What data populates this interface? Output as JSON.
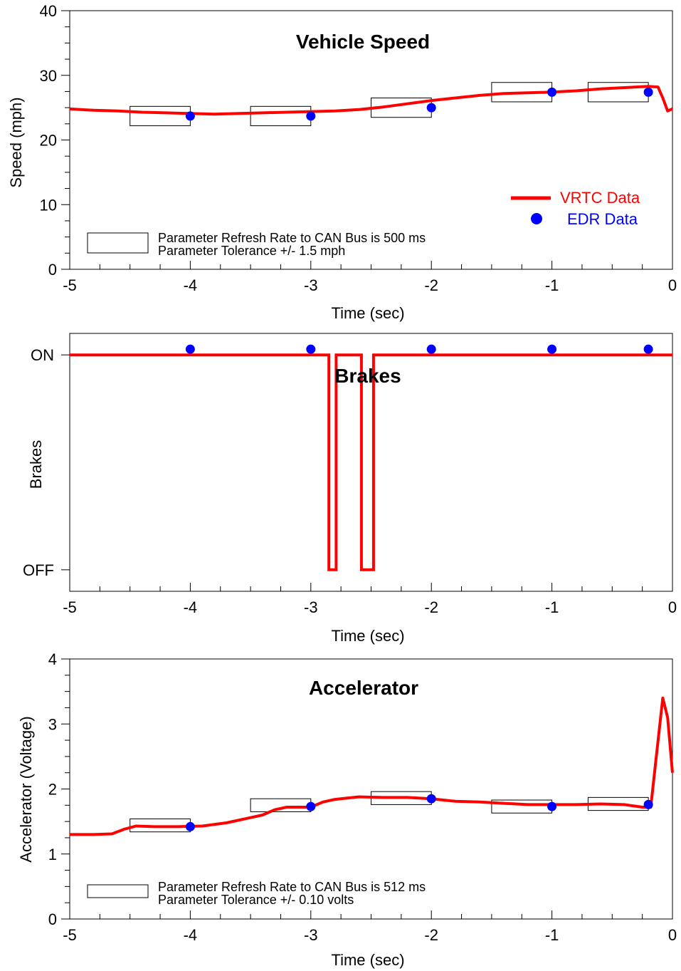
{
  "colors": {
    "vrtc": "#ff0000",
    "edr": "#0000ff",
    "axis": "#000000"
  },
  "chart_data": [
    {
      "type": "line",
      "title": "Vehicle Speed",
      "xlabel": "Time (sec)",
      "ylabel": "Speed (mph)",
      "xlim": [
        -5,
        0
      ],
      "ylim": [
        0,
        40
      ],
      "xticks": [
        "-5",
        "-4",
        "-3",
        "-2",
        "-1",
        "0"
      ],
      "yticks": [
        "0",
        "10",
        "20",
        "30",
        "40"
      ],
      "legend": {
        "placement": "bottom-right",
        "entries": [
          "VRTC Data",
          "EDR Data"
        ]
      },
      "notes": [
        "Parameter Refresh Rate to CAN Bus is 500 ms",
        "Parameter Tolerance +/- 1.5 mph"
      ],
      "series": [
        {
          "name": "VRTC Data",
          "x": [
            -5,
            -4.8,
            -4.6,
            -4.4,
            -4.2,
            -4.0,
            -3.8,
            -3.6,
            -3.4,
            -3.2,
            -3.0,
            -2.8,
            -2.6,
            -2.4,
            -2.2,
            -2.0,
            -1.8,
            -1.6,
            -1.4,
            -1.2,
            -1.0,
            -0.8,
            -0.6,
            -0.4,
            -0.2,
            -0.12,
            -0.08,
            -0.04,
            0
          ],
          "y": [
            24.8,
            24.6,
            24.5,
            24.3,
            24.2,
            24.1,
            24.0,
            24.1,
            24.2,
            24.3,
            24.4,
            24.5,
            24.7,
            25.1,
            25.6,
            26.1,
            26.5,
            26.9,
            27.2,
            27.3,
            27.4,
            27.6,
            27.9,
            28.1,
            28.3,
            28.2,
            26.5,
            24.5,
            24.8
          ]
        },
        {
          "name": "EDR Data",
          "x": [
            -4,
            -3,
            -2,
            -1,
            -0.2
          ],
          "y": [
            23.7,
            23.7,
            25.0,
            27.4,
            27.4
          ]
        }
      ],
      "tolerance_boxes": [
        {
          "x": [
            -4.5,
            -4.0
          ],
          "y": [
            22.2,
            25.2
          ]
        },
        {
          "x": [
            -3.5,
            -3.0
          ],
          "y": [
            22.2,
            25.2
          ]
        },
        {
          "x": [
            -2.5,
            -2.0
          ],
          "y": [
            23.5,
            26.5
          ]
        },
        {
          "x": [
            -1.5,
            -1.0
          ],
          "y": [
            25.9,
            28.9
          ]
        },
        {
          "x": [
            -0.7,
            -0.2
          ],
          "y": [
            25.9,
            28.9
          ]
        }
      ]
    },
    {
      "type": "line",
      "title": "Brakes",
      "xlabel": "Time (sec)",
      "ylabel": "Brakes",
      "xlim": [
        -5,
        0
      ],
      "ylim": [
        -0.1,
        1.1
      ],
      "xticks": [
        "-5",
        "-4",
        "-3",
        "-2",
        "-1",
        "0"
      ],
      "ycategories": [
        "OFF",
        "ON"
      ],
      "series": [
        {
          "name": "VRTC Data",
          "x": [
            -5,
            -2.85,
            -2.85,
            -2.79,
            -2.79,
            -2.58,
            -2.58,
            -2.48,
            -2.48,
            0
          ],
          "y": [
            1,
            1,
            0,
            0,
            1,
            1,
            0,
            0,
            1,
            1
          ]
        },
        {
          "name": "EDR Data",
          "x": [
            -4,
            -3,
            -2,
            -1,
            -0.2
          ],
          "y": [
            1,
            1,
            1,
            1,
            1
          ]
        }
      ]
    },
    {
      "type": "line",
      "title": "Accelerator",
      "xlabel": "Time (sec)",
      "ylabel": "Accelerator (Voltage)",
      "xlim": [
        -5,
        0
      ],
      "ylim": [
        0,
        4
      ],
      "xticks": [
        "-5",
        "-4",
        "-3",
        "-2",
        "-1",
        "0"
      ],
      "yticks": [
        "0",
        "1",
        "2",
        "3",
        "4"
      ],
      "notes": [
        "Parameter Refresh Rate to CAN Bus is 512 ms",
        "Parameter Tolerance +/- 0.10 volts"
      ],
      "series": [
        {
          "name": "VRTC Data",
          "x": [
            -5,
            -4.8,
            -4.65,
            -4.55,
            -4.45,
            -4.3,
            -4.1,
            -3.9,
            -3.7,
            -3.5,
            -3.4,
            -3.3,
            -3.2,
            -3.0,
            -2.9,
            -2.8,
            -2.6,
            -2.4,
            -2.2,
            -2.0,
            -1.8,
            -1.6,
            -1.4,
            -1.2,
            -1.0,
            -0.8,
            -0.6,
            -0.4,
            -0.25,
            -0.18,
            -0.14,
            -0.08,
            -0.04,
            0
          ],
          "y": [
            1.3,
            1.3,
            1.31,
            1.38,
            1.43,
            1.42,
            1.42,
            1.43,
            1.48,
            1.56,
            1.6,
            1.68,
            1.72,
            1.72,
            1.8,
            1.84,
            1.88,
            1.87,
            1.87,
            1.85,
            1.81,
            1.8,
            1.78,
            1.76,
            1.76,
            1.76,
            1.77,
            1.76,
            1.72,
            1.72,
            2.4,
            3.4,
            3.1,
            2.25
          ]
        },
        {
          "name": "EDR Data",
          "x": [
            -4,
            -3,
            -2,
            -1,
            -0.2
          ],
          "y": [
            1.42,
            1.73,
            1.85,
            1.73,
            1.76
          ]
        }
      ],
      "tolerance_boxes": [
        {
          "x": [
            -4.5,
            -4.0
          ],
          "y": [
            1.34,
            1.54
          ]
        },
        {
          "x": [
            -3.5,
            -3.0
          ],
          "y": [
            1.65,
            1.85
          ]
        },
        {
          "x": [
            -2.5,
            -2.0
          ],
          "y": [
            1.76,
            1.96
          ]
        },
        {
          "x": [
            -1.5,
            -1.0
          ],
          "y": [
            1.63,
            1.83
          ]
        },
        {
          "x": [
            -0.7,
            -0.2
          ],
          "y": [
            1.67,
            1.87
          ]
        }
      ]
    }
  ]
}
